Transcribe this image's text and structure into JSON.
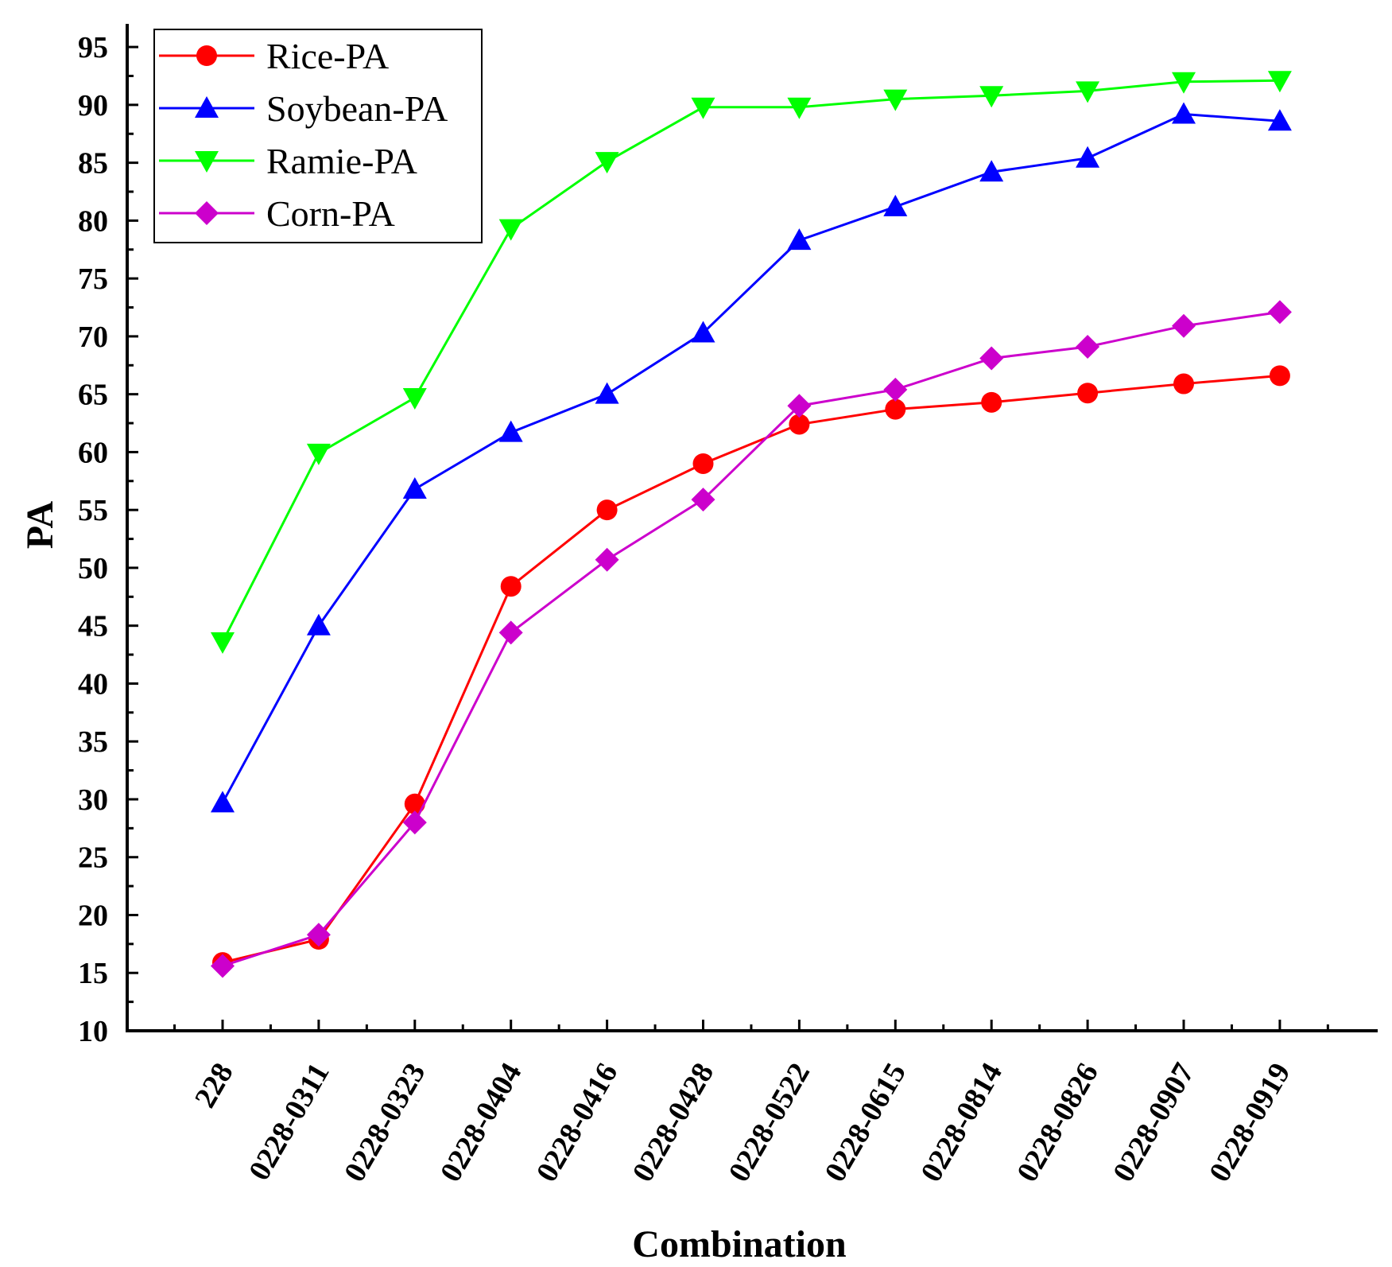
{
  "chart_data": {
    "type": "line",
    "title": "",
    "xlabel": "Combination",
    "ylabel": "PA",
    "ylim": [
      10,
      97
    ],
    "yticks": [
      10,
      15,
      20,
      25,
      30,
      35,
      40,
      45,
      50,
      55,
      60,
      65,
      70,
      75,
      80,
      85,
      90,
      95
    ],
    "categories": [
      "228",
      "0228-0311",
      "0228-0323",
      "0228-0404",
      "0228-0416",
      "0228-0428",
      "0228-0522",
      "0228-0615",
      "0228-0814",
      "0228-0826",
      "0228-0907",
      "0228-0919"
    ],
    "legend_position": "top-left",
    "series": [
      {
        "name": "Rice-PA",
        "color": "#ff0000",
        "marker": "circle",
        "values": [
          15.9,
          17.9,
          29.6,
          48.4,
          55.0,
          59.0,
          62.4,
          63.7,
          64.3,
          65.1,
          65.9,
          66.6
        ]
      },
      {
        "name": "Soybean-PA",
        "color": "#0000ff",
        "marker": "triangle-up",
        "values": [
          29.7,
          45.0,
          56.8,
          61.7,
          65.0,
          70.3,
          78.3,
          81.2,
          84.2,
          85.4,
          89.2,
          88.6
        ]
      },
      {
        "name": "Ramie-PA",
        "color": "#00ff00",
        "marker": "triangle-down",
        "values": [
          43.6,
          59.9,
          64.7,
          79.3,
          85.1,
          89.8,
          89.8,
          90.5,
          90.8,
          91.2,
          92.0,
          92.1
        ]
      },
      {
        "name": "Corn-PA",
        "color": "#cc00cc",
        "marker": "diamond",
        "values": [
          15.6,
          18.3,
          28.0,
          44.4,
          50.7,
          55.9,
          64.0,
          65.4,
          68.1,
          69.1,
          70.9,
          72.1
        ]
      }
    ]
  }
}
